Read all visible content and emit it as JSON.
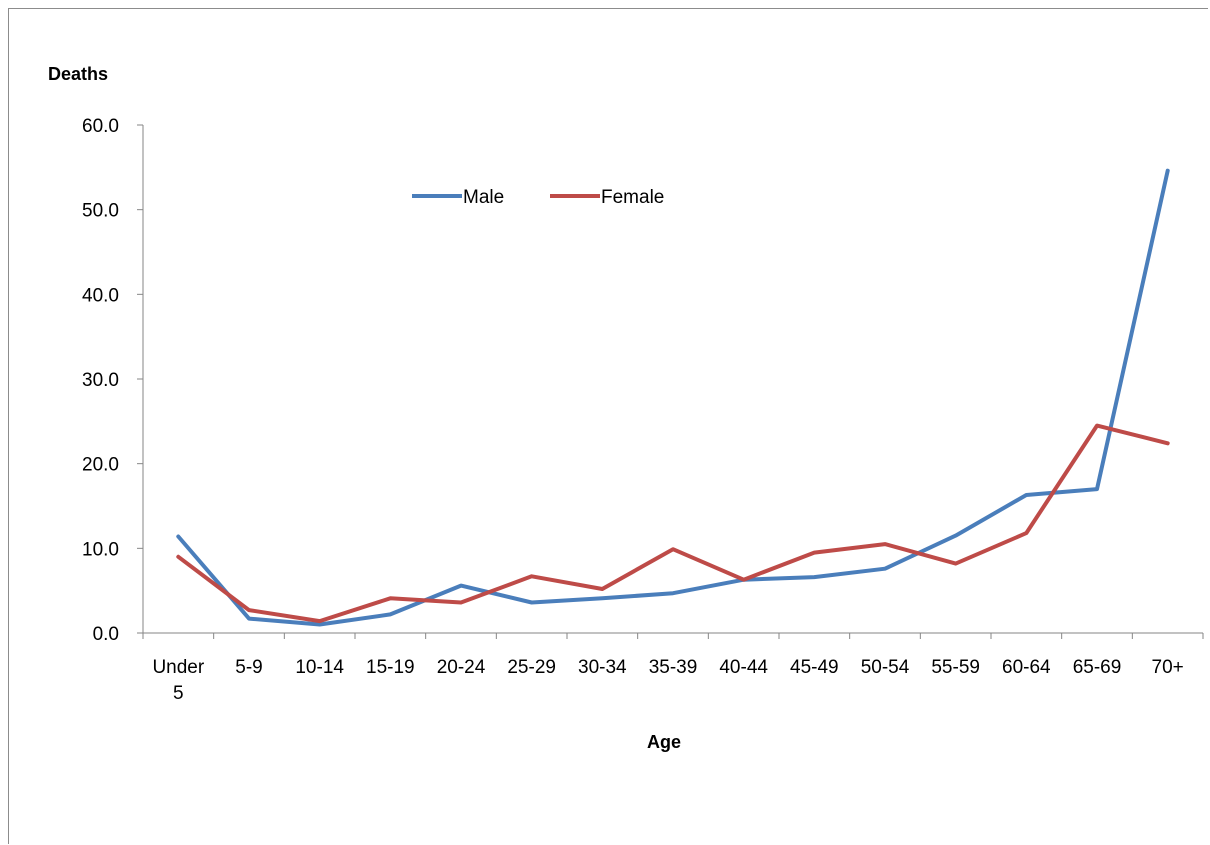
{
  "chart_data": {
    "type": "line",
    "title": "",
    "ylabel": "Deaths",
    "xlabel": "Age",
    "ylim": [
      0,
      60
    ],
    "y_ticks": [
      "0.0",
      "10.0",
      "20.0",
      "30.0",
      "40.0",
      "50.0",
      "60.0"
    ],
    "categories": [
      "Under 5",
      "5-9",
      "10-14",
      "15-19",
      "20-24",
      "25-29",
      "30-34",
      "35-39",
      "40-44",
      "45-49",
      "50-54",
      "55-59",
      "60-64",
      "65-69",
      "70+"
    ],
    "series": [
      {
        "name": "Male",
        "color": "#4a7ebb",
        "values": [
          11.4,
          1.7,
          1.0,
          2.2,
          5.6,
          3.6,
          4.1,
          4.7,
          6.3,
          6.6,
          7.6,
          11.5,
          16.3,
          17.0,
          54.6
        ]
      },
      {
        "name": "Female",
        "color": "#be4b48",
        "values": [
          9.0,
          2.7,
          1.4,
          4.1,
          3.6,
          6.7,
          5.2,
          9.9,
          6.3,
          9.5,
          10.5,
          8.2,
          11.8,
          24.5,
          22.4
        ]
      }
    ],
    "legend_position": "top-center",
    "grid": false
  }
}
